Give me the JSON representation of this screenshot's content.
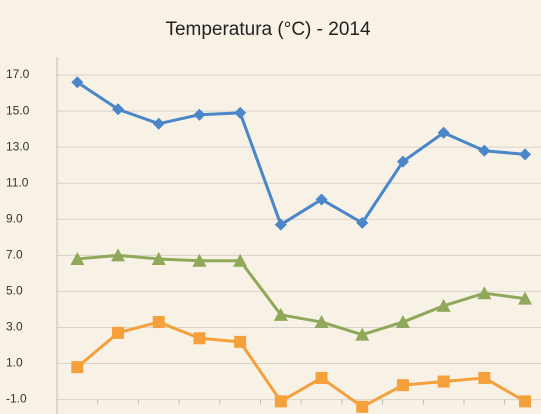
{
  "chart_data": {
    "type": "line",
    "title": "Temperatura (°C) - 2014",
    "categories": [
      null,
      null,
      null,
      null,
      null,
      null,
      null,
      null,
      null,
      null,
      null,
      null
    ],
    "series": [
      {
        "color": "#4a86c8",
        "marker": "diamond",
        "values": [
          16.6,
          15.1,
          14.3,
          14.8,
          14.9,
          8.7,
          10.1,
          8.8,
          12.2,
          13.8,
          12.8,
          12.6
        ]
      },
      {
        "color": "#8fa85a",
        "marker": "triangle",
        "values": [
          6.8,
          7.0,
          6.8,
          6.7,
          6.7,
          3.7,
          3.3,
          2.6,
          3.3,
          4.2,
          4.9,
          4.6
        ]
      },
      {
        "color": "#f5a03a",
        "marker": "square",
        "values": [
          0.8,
          2.7,
          3.3,
          2.4,
          2.2,
          -1.1,
          0.2,
          -1.4,
          -0.2,
          0.0,
          0.2,
          -1.1
        ]
      }
    ],
    "ylim": [
      -1.8,
      18
    ],
    "yticks": [
      {
        "value": -1,
        "label": "-1.0"
      },
      {
        "value": 1,
        "label": "1.0"
      },
      {
        "value": 3,
        "label": "3.0"
      },
      {
        "value": 5,
        "label": "5.0"
      },
      {
        "value": 7,
        "label": "7.0"
      },
      {
        "value": 9,
        "label": "9.0"
      },
      {
        "value": 11,
        "label": "11.0"
      },
      {
        "value": 13,
        "label": "13.0"
      },
      {
        "value": 15,
        "label": "15.0"
      },
      {
        "value": 17,
        "label": "17.0"
      }
    ],
    "grid": true
  }
}
